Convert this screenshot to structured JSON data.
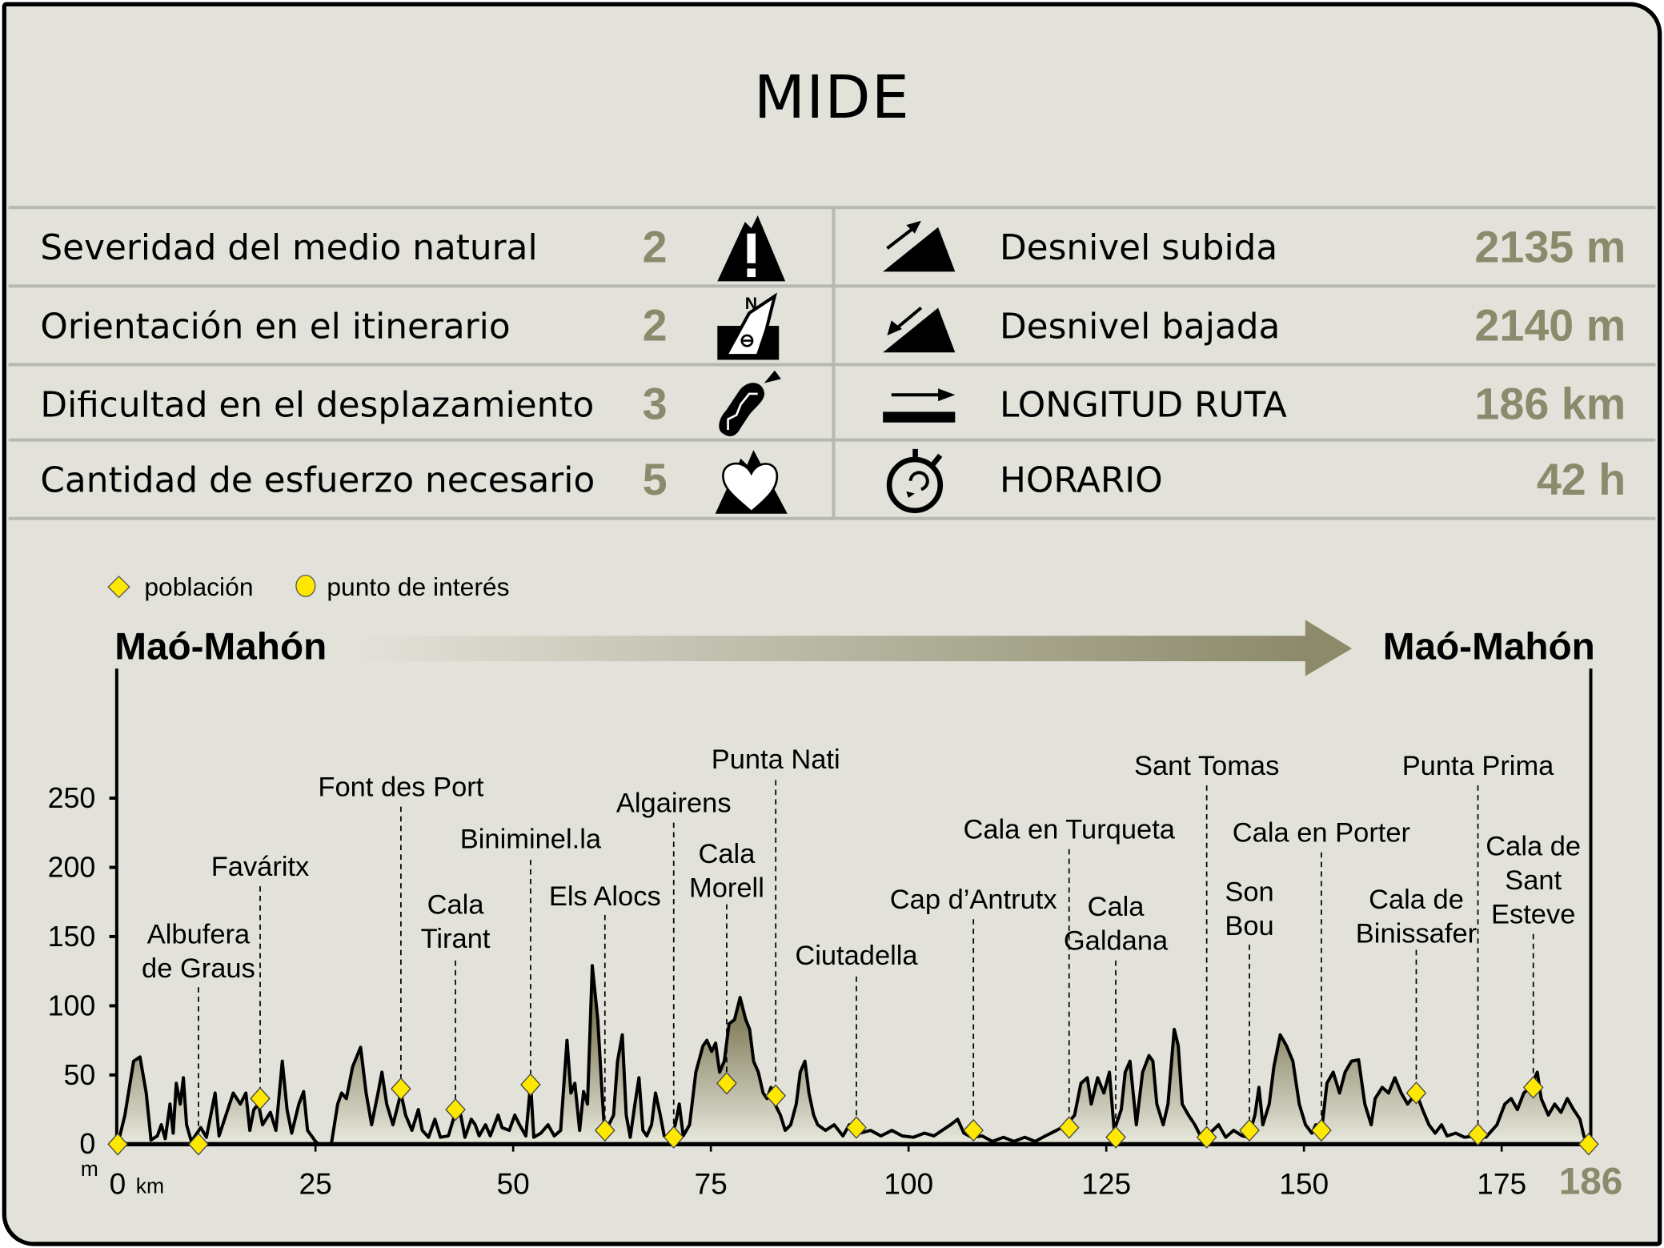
{
  "title": "MIDE",
  "mide": [
    {
      "label": "Severidad del medio natural",
      "value": "2",
      "icon": "warning-mountain-icon"
    },
    {
      "label": "Orientación en el itinerario",
      "value": "2",
      "icon": "compass-orientation-icon"
    },
    {
      "label": "Dificultad en el desplazamiento",
      "value": "3",
      "icon": "boot-sole-icon"
    },
    {
      "label": "Cantidad de esfuerzo necesario",
      "value": "5",
      "icon": "heart-mountain-icon"
    }
  ],
  "stats": [
    {
      "label": "Desnivel subida",
      "value": "2135 m",
      "icon": "ascent-icon"
    },
    {
      "label": "Desnivel bajada",
      "value": "2140 m",
      "icon": "descent-icon"
    },
    {
      "label": "LONGITUD RUTA",
      "value": "186 km",
      "icon": "distance-icon"
    },
    {
      "label": "HORARIO",
      "value": "42 h",
      "icon": "stopwatch-icon"
    }
  ],
  "colors": {
    "background": "#e2e2da",
    "value": "#8c8a6c",
    "fill_dark": "#7d7a58",
    "fill_light": "#e2e2da",
    "marker": "#ffe800"
  },
  "chart_data": {
    "type": "area",
    "legend": [
      {
        "symbol": "diamond",
        "label": "población"
      },
      {
        "symbol": "circle",
        "label": "punto de interés"
      }
    ],
    "start_label": "Maó-Mahón",
    "end_label": "Maó-Mahón",
    "ylabel": "m",
    "xlabel": "km",
    "ylim": [
      0,
      250
    ],
    "xlim": [
      0,
      186
    ],
    "yticks": [
      0,
      50,
      100,
      150,
      200,
      250
    ],
    "xticks": [
      0,
      25,
      50,
      75,
      100,
      125,
      150,
      175,
      186
    ],
    "profile": [
      [
        0,
        0
      ],
      [
        0.9,
        21
      ],
      [
        2,
        60
      ],
      [
        2.8,
        63
      ],
      [
        3.6,
        37
      ],
      [
        4.2,
        3
      ],
      [
        5,
        6
      ],
      [
        5.5,
        14
      ],
      [
        6,
        4
      ],
      [
        6.6,
        29
      ],
      [
        7,
        8
      ],
      [
        7.4,
        44
      ],
      [
        7.9,
        29
      ],
      [
        8.3,
        48
      ],
      [
        8.7,
        14
      ],
      [
        9.3,
        2
      ],
      [
        10.5,
        12
      ],
      [
        11.2,
        5
      ],
      [
        12.3,
        37
      ],
      [
        12.8,
        6
      ],
      [
        14.6,
        37
      ],
      [
        15.5,
        29
      ],
      [
        16.2,
        37
      ],
      [
        16.7,
        10
      ],
      [
        17.2,
        25
      ],
      [
        17.8,
        29
      ],
      [
        18.3,
        14
      ],
      [
        19.3,
        23
      ],
      [
        20,
        10
      ],
      [
        20.8,
        60
      ],
      [
        21.4,
        25
      ],
      [
        22,
        8
      ],
      [
        22.9,
        29
      ],
      [
        23.5,
        38
      ],
      [
        24,
        10
      ],
      [
        25,
        2
      ],
      [
        25.4,
        0
      ],
      [
        27,
        0
      ],
      [
        27.8,
        29
      ],
      [
        28.3,
        37
      ],
      [
        28.9,
        33
      ],
      [
        29.7,
        56
      ],
      [
        30.7,
        70
      ],
      [
        31.4,
        37
      ],
      [
        32.1,
        14
      ],
      [
        32.9,
        37
      ],
      [
        33.4,
        52
      ],
      [
        34,
        29
      ],
      [
        34.8,
        14
      ],
      [
        35.8,
        37
      ],
      [
        36.4,
        21
      ],
      [
        37.2,
        10
      ],
      [
        38,
        25
      ],
      [
        38.5,
        10
      ],
      [
        39.3,
        5
      ],
      [
        40.1,
        18
      ],
      [
        40.8,
        5
      ],
      [
        41.8,
        6
      ],
      [
        42.6,
        21
      ],
      [
        43.1,
        29
      ],
      [
        43.9,
        5
      ],
      [
        44.7,
        18
      ],
      [
        45.2,
        14
      ],
      [
        45.7,
        6
      ],
      [
        46.5,
        14
      ],
      [
        47.1,
        6
      ],
      [
        48.1,
        21
      ],
      [
        48.6,
        12
      ],
      [
        49.5,
        10
      ],
      [
        50.2,
        21
      ],
      [
        50.8,
        14
      ],
      [
        51.6,
        6
      ],
      [
        52.2,
        44
      ],
      [
        52.6,
        5
      ],
      [
        53.5,
        8
      ],
      [
        54.4,
        14
      ],
      [
        55.2,
        6
      ],
      [
        56,
        10
      ],
      [
        56.8,
        75
      ],
      [
        57.3,
        37
      ],
      [
        57.8,
        44
      ],
      [
        58.4,
        10
      ],
      [
        58.9,
        38
      ],
      [
        59.4,
        29
      ],
      [
        60,
        129
      ],
      [
        60.7,
        90
      ],
      [
        61.2,
        41
      ],
      [
        61.6,
        5
      ],
      [
        62.1,
        14
      ],
      [
        62.7,
        21
      ],
      [
        63.2,
        60
      ],
      [
        63.8,
        79
      ],
      [
        64.3,
        21
      ],
      [
        64.8,
        5
      ],
      [
        65.4,
        29
      ],
      [
        65.9,
        48
      ],
      [
        66.4,
        10
      ],
      [
        66.9,
        6
      ],
      [
        67.5,
        14
      ],
      [
        68,
        37
      ],
      [
        68.6,
        21
      ],
      [
        69.1,
        6
      ],
      [
        69.9,
        5
      ],
      [
        70.5,
        14
      ],
      [
        71,
        29
      ],
      [
        71.5,
        6
      ],
      [
        72.3,
        14
      ],
      [
        73.1,
        52
      ],
      [
        74,
        71
      ],
      [
        74.5,
        75
      ],
      [
        75.1,
        67
      ],
      [
        75.6,
        73
      ],
      [
        76.1,
        52
      ],
      [
        76.7,
        60
      ],
      [
        77.3,
        87
      ],
      [
        78,
        90
      ],
      [
        78.7,
        106
      ],
      [
        79.4,
        90
      ],
      [
        79.9,
        83
      ],
      [
        80.4,
        60
      ],
      [
        81,
        52
      ],
      [
        81.6,
        37
      ],
      [
        82.1,
        33
      ],
      [
        82.6,
        41
      ],
      [
        83.1,
        29
      ],
      [
        83.8,
        21
      ],
      [
        84.4,
        10
      ],
      [
        85.1,
        14
      ],
      [
        85.8,
        29
      ],
      [
        86.3,
        52
      ],
      [
        86.9,
        60
      ],
      [
        87.4,
        37
      ],
      [
        88,
        21
      ],
      [
        88.5,
        14
      ],
      [
        89.5,
        10
      ],
      [
        90.6,
        14
      ],
      [
        91.7,
        6
      ],
      [
        92.5,
        14
      ],
      [
        93.8,
        8
      ],
      [
        95.2,
        10
      ],
      [
        96.5,
        6
      ],
      [
        97.9,
        10
      ],
      [
        99.2,
        6
      ],
      [
        100.6,
        5
      ],
      [
        102,
        8
      ],
      [
        103.2,
        6
      ],
      [
        105.3,
        14
      ],
      [
        106.2,
        18
      ],
      [
        107,
        8
      ],
      [
        108,
        5
      ],
      [
        109.3,
        6
      ],
      [
        110.6,
        2
      ],
      [
        112,
        5
      ],
      [
        113.3,
        2
      ],
      [
        114.7,
        5
      ],
      [
        116,
        2
      ],
      [
        117.3,
        6
      ],
      [
        118.7,
        10
      ],
      [
        120,
        14
      ],
      [
        121,
        21
      ],
      [
        121.8,
        44
      ],
      [
        122.6,
        48
      ],
      [
        123.1,
        29
      ],
      [
        123.9,
        48
      ],
      [
        124.7,
        37
      ],
      [
        125.4,
        52
      ],
      [
        126,
        10
      ],
      [
        126.9,
        25
      ],
      [
        127.4,
        52
      ],
      [
        128,
        60
      ],
      [
        128.8,
        14
      ],
      [
        129.6,
        52
      ],
      [
        130.4,
        64
      ],
      [
        130.9,
        60
      ],
      [
        131.4,
        29
      ],
      [
        132.2,
        14
      ],
      [
        132.8,
        29
      ],
      [
        133.6,
        83
      ],
      [
        134.1,
        71
      ],
      [
        134.6,
        29
      ],
      [
        135.4,
        21
      ],
      [
        136.2,
        14
      ],
      [
        137,
        5
      ],
      [
        138.1,
        8
      ],
      [
        139.2,
        14
      ],
      [
        140.1,
        5
      ],
      [
        141.1,
        10
      ],
      [
        142.2,
        6
      ],
      [
        143,
        5
      ],
      [
        143.8,
        21
      ],
      [
        144.3,
        41
      ],
      [
        144.8,
        14
      ],
      [
        145.6,
        29
      ],
      [
        146.2,
        56
      ],
      [
        147,
        79
      ],
      [
        147.8,
        71
      ],
      [
        148.6,
        60
      ],
      [
        149.4,
        29
      ],
      [
        150.2,
        14
      ],
      [
        151,
        8
      ],
      [
        151.5,
        14
      ],
      [
        152.2,
        8
      ],
      [
        152.9,
        44
      ],
      [
        153.7,
        52
      ],
      [
        154.5,
        37
      ],
      [
        155.2,
        52
      ],
      [
        156,
        60
      ],
      [
        156.9,
        61
      ],
      [
        157.7,
        29
      ],
      [
        158.5,
        14
      ],
      [
        159,
        33
      ],
      [
        159.9,
        41
      ],
      [
        160.7,
        37
      ],
      [
        161.5,
        48
      ],
      [
        162.3,
        37
      ],
      [
        163.1,
        29
      ],
      [
        164.2,
        37
      ],
      [
        165,
        25
      ],
      [
        165.8,
        14
      ],
      [
        166.6,
        8
      ],
      [
        167.4,
        14
      ],
      [
        168.1,
        6
      ],
      [
        169.2,
        8
      ],
      [
        170.3,
        5
      ],
      [
        171.6,
        6
      ],
      [
        173,
        5
      ],
      [
        174.4,
        14
      ],
      [
        175.4,
        29
      ],
      [
        176.2,
        33
      ],
      [
        177,
        25
      ],
      [
        177.8,
        37
      ],
      [
        178.6,
        41
      ],
      [
        179.5,
        52
      ],
      [
        180,
        33
      ],
      [
        180.9,
        21
      ],
      [
        181.7,
        29
      ],
      [
        182.5,
        23
      ],
      [
        183.3,
        33
      ],
      [
        184.1,
        25
      ],
      [
        184.9,
        18
      ],
      [
        185.4,
        6
      ],
      [
        186,
        0
      ]
    ],
    "waypoints": [
      {
        "km": 0,
        "m": 0,
        "type": "población",
        "lines": []
      },
      {
        "km": 10.2,
        "m": 0,
        "type": "población",
        "lines": [
          "Albufera",
          "de Graus"
        ]
      },
      {
        "km": 18,
        "m": 33,
        "type": "población",
        "lines": [
          "Faváritx"
        ]
      },
      {
        "km": 35.8,
        "m": 40,
        "type": "población",
        "lines": [
          "Font des Port"
        ]
      },
      {
        "km": 42.7,
        "m": 25,
        "type": "población",
        "lines": [
          "Cala",
          "Tirant"
        ]
      },
      {
        "km": 52.2,
        "m": 43,
        "type": "población",
        "lines": [
          "Biniminel.la"
        ]
      },
      {
        "km": 61.6,
        "m": 10,
        "type": "población",
        "lines": [
          "Els Alocs"
        ]
      },
      {
        "km": 70.3,
        "m": 5,
        "type": "población",
        "lines": [
          "Algairens"
        ]
      },
      {
        "km": 77,
        "m": 44,
        "type": "población",
        "lines": [
          "Cala",
          "Morell"
        ]
      },
      {
        "km": 83.2,
        "m": 35,
        "type": "población",
        "lines": [
          "Punta Nati"
        ]
      },
      {
        "km": 93.4,
        "m": 12,
        "type": "población",
        "lines": [
          "Ciutadella"
        ]
      },
      {
        "km": 108.2,
        "m": 10,
        "type": "población",
        "lines": [
          "Cap d’Antrutx"
        ]
      },
      {
        "km": 120.3,
        "m": 12,
        "type": "población",
        "lines": [
          "Cala en Turqueta"
        ]
      },
      {
        "km": 126.2,
        "m": 5,
        "type": "población",
        "lines": [
          "Cala",
          "Galdana"
        ]
      },
      {
        "km": 137.7,
        "m": 5,
        "type": "población",
        "lines": [
          "Sant Tomas"
        ]
      },
      {
        "km": 143.1,
        "m": 10,
        "type": "población",
        "lines": [
          "Son",
          "Bou"
        ]
      },
      {
        "km": 152.2,
        "m": 10,
        "type": "población",
        "lines": [
          "Cala en Porter"
        ]
      },
      {
        "km": 164.2,
        "m": 37,
        "type": "población",
        "lines": [
          "Cala de",
          "Binissafer"
        ]
      },
      {
        "km": 172,
        "m": 7,
        "type": "población",
        "lines": [
          "Punta Prima"
        ]
      },
      {
        "km": 179,
        "m": 41,
        "type": "población",
        "lines": [
          "Cala de",
          "Sant",
          "Esteve"
        ]
      },
      {
        "km": 186,
        "m": 0,
        "type": "población",
        "lines": []
      }
    ]
  }
}
